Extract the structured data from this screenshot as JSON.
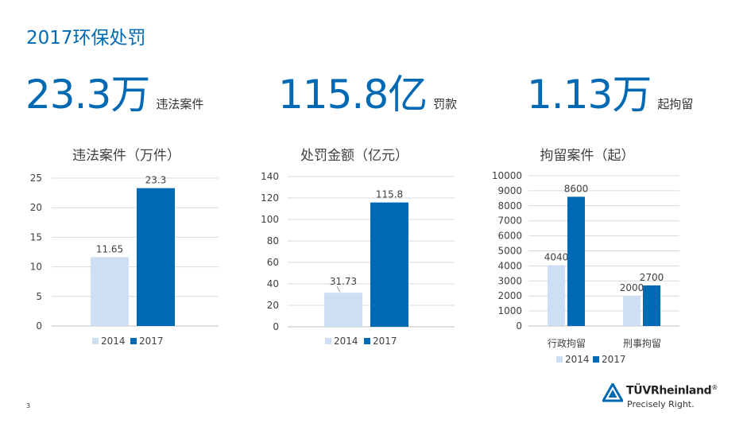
{
  "page": {
    "title": "2017环保处罚",
    "page_number": "3"
  },
  "stats": [
    {
      "value": "23.3万",
      "label": "违法案件"
    },
    {
      "value": "115.8亿",
      "label": "罚款"
    },
    {
      "value": "1.13万",
      "label": "起拘留"
    }
  ],
  "brand": {
    "name": "TÜVRheinland",
    "registered": "®",
    "tagline": "Precisely Right.",
    "logo_icon": "tuv-triangle-logo-icon"
  },
  "colors": {
    "accent": "#0069b4",
    "series_2014": "#cfdff3",
    "series_2017": "#0069b4"
  },
  "chart_data": [
    {
      "type": "bar",
      "title": "违法案件（万件）",
      "categories": [
        ""
      ],
      "series": [
        {
          "name": "2014",
          "values": [
            11.65
          ],
          "labels": [
            "11.65"
          ]
        },
        {
          "name": "2017",
          "values": [
            23.3
          ],
          "labels": [
            "23.3"
          ]
        }
      ],
      "ylim": [
        0,
        25
      ],
      "yticks": [
        "0",
        "5",
        "10",
        "15",
        "20",
        "25"
      ],
      "grid": true,
      "legend": "bottom"
    },
    {
      "type": "bar",
      "title": "处罚金额（亿元）",
      "categories": [
        ""
      ],
      "series": [
        {
          "name": "2014",
          "values": [
            31.73
          ],
          "labels": [
            "31.73"
          ]
        },
        {
          "name": "2017",
          "values": [
            115.8
          ],
          "labels": [
            "115.8"
          ]
        }
      ],
      "ylim": [
        0,
        140
      ],
      "yticks": [
        "0",
        "20",
        "40",
        "60",
        "80",
        "100",
        "120",
        "140"
      ],
      "grid": true,
      "legend": "bottom"
    },
    {
      "type": "bar",
      "title": "拘留案件（起）",
      "categories": [
        "行政拘留",
        "刑事拘留"
      ],
      "series": [
        {
          "name": "2014",
          "values": [
            4040,
            2000
          ],
          "labels": [
            "4040",
            "2000"
          ]
        },
        {
          "name": "2017",
          "values": [
            8600,
            2700
          ],
          "labels": [
            "8600",
            "2700"
          ]
        }
      ],
      "ylim": [
        0,
        10000
      ],
      "yticks": [
        "0",
        "1000",
        "2000",
        "3000",
        "4000",
        "5000",
        "6000",
        "7000",
        "8000",
        "9000",
        "10000"
      ],
      "grid": true,
      "legend": "bottom"
    }
  ]
}
